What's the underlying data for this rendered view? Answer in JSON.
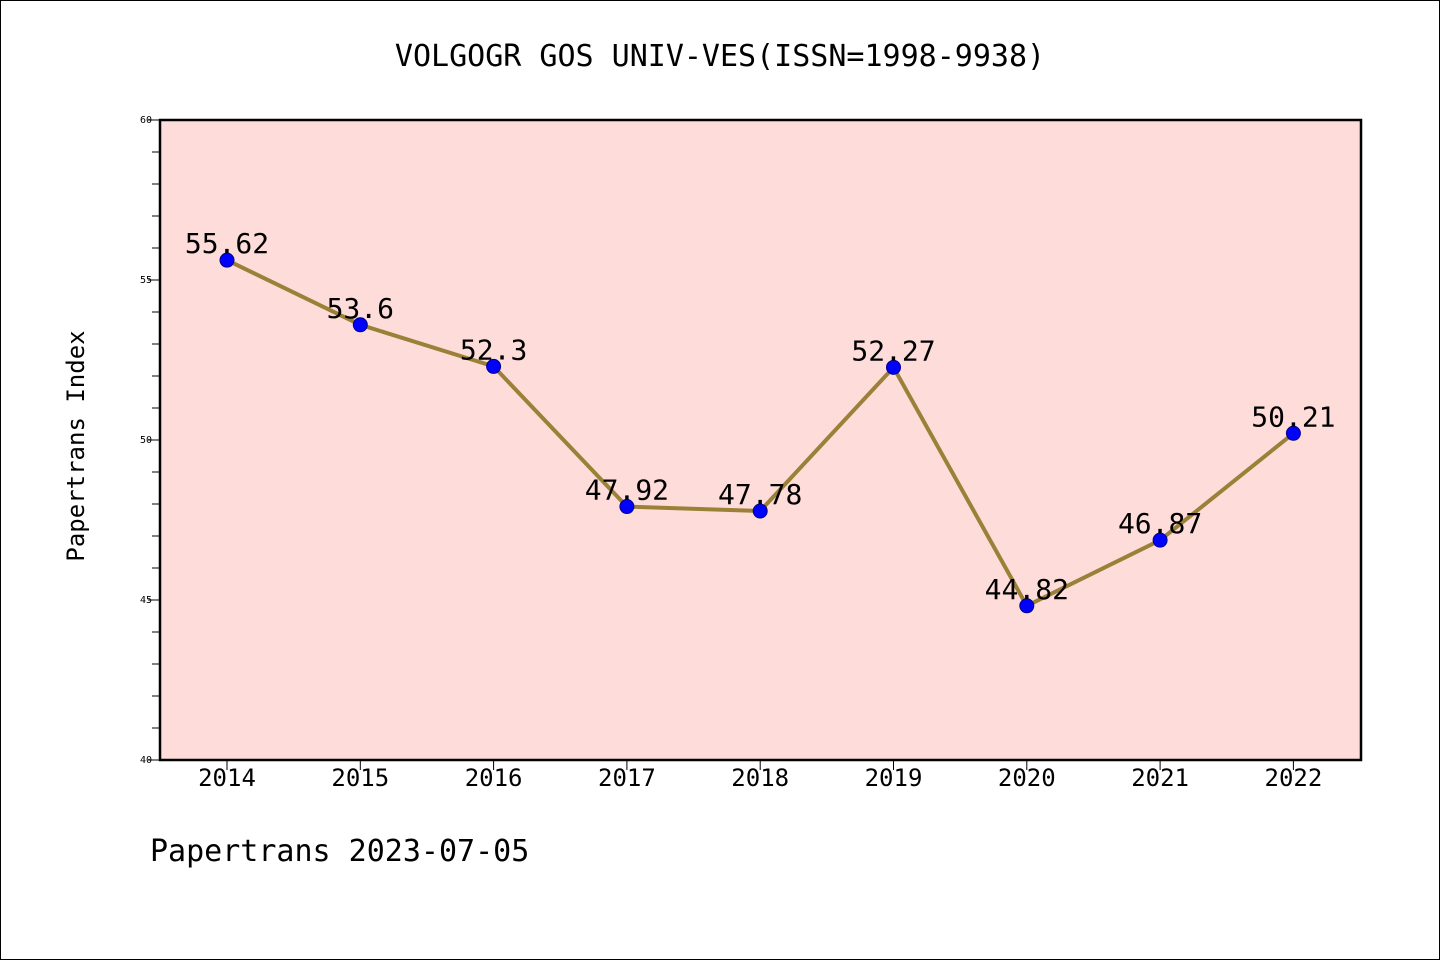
{
  "chart_data": {
    "type": "line",
    "title": "VOLGOGR GOS UNIV-VES(ISSN=1998-9938)",
    "xlabel": "",
    "ylabel": "Papertrans Index",
    "categories": [
      "2014",
      "2015",
      "2016",
      "2017",
      "2018",
      "2019",
      "2020",
      "2021",
      "2022"
    ],
    "series": [
      {
        "values": [
          55.62,
          53.6,
          52.3,
          47.92,
          47.78,
          52.27,
          44.82,
          46.87,
          50.21
        ]
      }
    ],
    "data_labels": [
      "55.62",
      "53.6",
      "52.3",
      "47.92",
      "47.78",
      "52.27",
      "44.82",
      "46.87",
      "50.21"
    ],
    "ylim": [
      40,
      60
    ],
    "yticks": [
      "40",
      "45",
      "50",
      "55",
      "60"
    ],
    "grid": false,
    "colors": {
      "plot_background": "#fddcda",
      "line": "#9b8038",
      "marker": "#0000ff"
    }
  },
  "footer": {
    "note": "Papertrans 2023-07-05"
  }
}
